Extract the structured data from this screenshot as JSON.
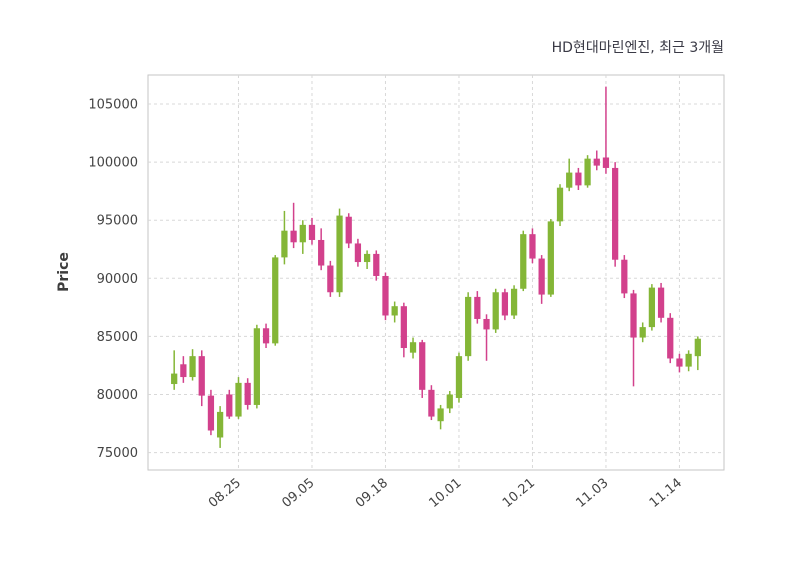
{
  "chart_data": {
    "type": "candlestick",
    "title": "HD현대마린엔진, 최근 3개월",
    "ylabel": "Price",
    "ylim": [
      73500,
      107500
    ],
    "y_ticks": [
      75000,
      80000,
      85000,
      90000,
      95000,
      100000,
      105000
    ],
    "x_tick_labels": [
      "08.25",
      "09.05",
      "09.18",
      "10.01",
      "10.21",
      "11.03",
      "11.14"
    ],
    "x_tick_indices": [
      7,
      15,
      23,
      31,
      39,
      47,
      55
    ],
    "grid": "dashed",
    "legend": "none",
    "candle_format": [
      "open",
      "high",
      "low",
      "close"
    ],
    "colors": {
      "up": "#84b637",
      "down": "#d2418c",
      "grid": "#d8d8d8",
      "border": "#c6c6c6",
      "axis_text": "#444444",
      "title_text": "#3a3a46",
      "background": "#ffffff"
    },
    "candles": [
      [
        80900,
        83800,
        80400,
        81800
      ],
      [
        82600,
        83300,
        81000,
        81500
      ],
      [
        81500,
        83900,
        81200,
        83300
      ],
      [
        83300,
        83800,
        79000,
        79900
      ],
      [
        79900,
        80400,
        76500,
        76900
      ],
      [
        76300,
        79000,
        75400,
        78500
      ],
      [
        80000,
        80400,
        77900,
        78100
      ],
      [
        78100,
        81500,
        77900,
        81000
      ],
      [
        81000,
        81400,
        78700,
        79100
      ],
      [
        79100,
        86000,
        78800,
        85700
      ],
      [
        85700,
        86100,
        84000,
        84400
      ],
      [
        84400,
        92000,
        84200,
        91800
      ],
      [
        91800,
        95800,
        91200,
        94100
      ],
      [
        94100,
        96500,
        92600,
        93100
      ],
      [
        93100,
        95000,
        92100,
        94600
      ],
      [
        94600,
        95200,
        92900,
        93300
      ],
      [
        93300,
        94300,
        90700,
        91100
      ],
      [
        91100,
        91500,
        88400,
        88800
      ],
      [
        88800,
        96000,
        88400,
        95400
      ],
      [
        95300,
        95600,
        92600,
        93000
      ],
      [
        93000,
        93400,
        91000,
        91400
      ],
      [
        91400,
        92400,
        90800,
        92100
      ],
      [
        92100,
        92400,
        89800,
        90200
      ],
      [
        90200,
        90500,
        86400,
        86800
      ],
      [
        86800,
        88000,
        86200,
        87600
      ],
      [
        87600,
        87900,
        83200,
        84000
      ],
      [
        83600,
        84900,
        83100,
        84500
      ],
      [
        84500,
        84700,
        79700,
        80400
      ],
      [
        80400,
        80800,
        77800,
        78100
      ],
      [
        77700,
        79100,
        77000,
        78800
      ],
      [
        78800,
        80300,
        78400,
        80000
      ],
      [
        79700,
        83600,
        79300,
        83300
      ],
      [
        83300,
        88800,
        82900,
        88400
      ],
      [
        88400,
        88900,
        86100,
        86500
      ],
      [
        86500,
        86900,
        82900,
        85600
      ],
      [
        85600,
        89100,
        85300,
        88800
      ],
      [
        88800,
        89100,
        86400,
        86800
      ],
      [
        86800,
        89400,
        86500,
        89100
      ],
      [
        89100,
        94100,
        88900,
        93800
      ],
      [
        93800,
        94300,
        91300,
        91700
      ],
      [
        91700,
        92000,
        87800,
        88600
      ],
      [
        88600,
        95100,
        88400,
        94900
      ],
      [
        94900,
        98100,
        94500,
        97800
      ],
      [
        97800,
        100300,
        97500,
        99100
      ],
      [
        99100,
        99500,
        97600,
        98000
      ],
      [
        98000,
        100600,
        97800,
        100300
      ],
      [
        100300,
        101000,
        99300,
        99700
      ],
      [
        100400,
        106500,
        99000,
        99500
      ],
      [
        99500,
        100000,
        91000,
        91600
      ],
      [
        91600,
        92000,
        88300,
        88700
      ],
      [
        88700,
        89000,
        80700,
        84900
      ],
      [
        84900,
        86200,
        84500,
        85800
      ],
      [
        85800,
        89500,
        85500,
        89200
      ],
      [
        89200,
        89600,
        86200,
        86600
      ],
      [
        86600,
        87000,
        82700,
        83100
      ],
      [
        83100,
        83500,
        81900,
        82400
      ],
      [
        82400,
        83800,
        82000,
        83500
      ],
      [
        83300,
        85000,
        82100,
        84800
      ]
    ]
  }
}
